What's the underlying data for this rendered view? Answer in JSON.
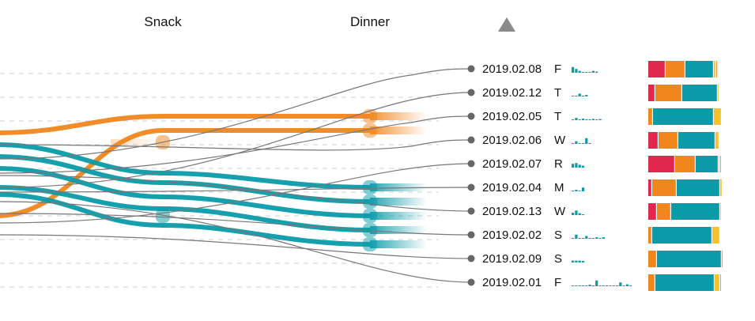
{
  "header": {
    "columns": [
      "Snack",
      "Dinner"
    ],
    "sort_icon": "triangle-up-icon"
  },
  "chart_data": {
    "type": "parallel-flow",
    "colors": {
      "teal": "#0a9aa8",
      "orange": "#f0861c",
      "red": "#e0274e",
      "yellow": "#f6c22c",
      "connector": "#777777",
      "grid": "#d0d0d0"
    },
    "rows": [
      {
        "date": "2019.02.08",
        "day": "F",
        "mini": [
          3,
          2,
          1,
          0.4,
          0.4,
          0.4,
          1,
          0.6
        ],
        "segments": [
          {
            "c": "red",
            "v": 22
          },
          {
            "c": "orange",
            "v": 25
          },
          {
            "c": "teal",
            "v": 36
          },
          {
            "c": "yellow",
            "v": 3
          },
          {
            "c": "orange",
            "v": 2
          }
        ]
      },
      {
        "date": "2019.02.12",
        "day": "T",
        "mini": [
          0.4,
          0.4,
          1.5,
          0.4,
          0.8
        ],
        "segments": [
          {
            "c": "red",
            "v": 9
          },
          {
            "c": "orange",
            "v": 34
          },
          {
            "c": "teal",
            "v": 45
          },
          {
            "c": "yellow",
            "v": 2
          }
        ]
      },
      {
        "date": "2019.02.05",
        "day": "T",
        "mini": [
          0.4,
          1.2,
          0.4,
          0.8,
          0.4,
          0.4,
          0.7,
          0.4,
          0.6
        ],
        "segments": [
          {
            "c": "orange",
            "v": 6
          },
          {
            "c": "teal",
            "v": 77
          },
          {
            "c": "yellow",
            "v": 10
          }
        ]
      },
      {
        "date": "2019.02.06",
        "day": "W",
        "mini": [
          0.4,
          1.4,
          0.4,
          0.4,
          3,
          0.4
        ],
        "segments": [
          {
            "c": "red",
            "v": 13
          },
          {
            "c": "orange",
            "v": 25
          },
          {
            "c": "teal",
            "v": 47
          },
          {
            "c": "yellow",
            "v": 5
          }
        ]
      },
      {
        "date": "2019.02.07",
        "day": "R",
        "mini": [
          2,
          2.4,
          1.5,
          1
        ],
        "segments": [
          {
            "c": "red",
            "v": 34
          },
          {
            "c": "orange",
            "v": 26
          },
          {
            "c": "teal",
            "v": 29
          },
          {
            "c": "yellow",
            "v": 2
          },
          {
            "c": "orange",
            "v": 2
          }
        ]
      },
      {
        "date": "2019.02.04",
        "day": "M",
        "mini": [
          0.4,
          0.8,
          0.4,
          2
        ],
        "segments": [
          {
            "c": "red",
            "v": 5
          },
          {
            "c": "orange",
            "v": 31
          },
          {
            "c": "teal",
            "v": 55
          },
          {
            "c": "yellow",
            "v": 3
          }
        ]
      },
      {
        "date": "2019.02.13",
        "day": "W",
        "mini": [
          1.2,
          2.4,
          1,
          0.4
        ],
        "segments": [
          {
            "c": "red",
            "v": 11
          },
          {
            "c": "orange",
            "v": 18
          },
          {
            "c": "teal",
            "v": 62
          },
          {
            "c": "yellow",
            "v": 2
          }
        ]
      },
      {
        "date": "2019.02.02",
        "day": "S",
        "mini": [
          0.4,
          2.2,
          0.4,
          0.4,
          1.5,
          0.4,
          0.4,
          0.8,
          0.4,
          0.8
        ],
        "segments": [
          {
            "c": "orange",
            "v": 5
          },
          {
            "c": "teal",
            "v": 76
          },
          {
            "c": "yellow",
            "v": 10
          }
        ]
      },
      {
        "date": "2019.02.09",
        "day": "S",
        "mini": [
          1,
          1,
          1,
          0.8
        ],
        "segments": [
          {
            "c": "orange",
            "v": 11
          },
          {
            "c": "teal",
            "v": 82
          },
          {
            "c": "orange",
            "v": 2
          }
        ]
      },
      {
        "date": "2019.02.01",
        "day": "F",
        "mini": [
          0.4,
          0.4,
          0.4,
          0.4,
          0.4,
          0.8,
          0.4,
          3,
          0.4,
          0.4,
          0.4,
          0.4,
          0.4,
          0.4,
          2,
          0.4,
          1,
          0.4
        ],
        "segments": [
          {
            "c": "orange",
            "v": 9
          },
          {
            "c": "teal",
            "v": 75
          },
          {
            "c": "yellow",
            "v": 7
          },
          {
            "c": "orange",
            "v": 2
          }
        ]
      }
    ],
    "flows": [
      {
        "color": "orange",
        "start_row": 2.7,
        "mid_row": 2.0,
        "dinner_row": 2.0
      },
      {
        "color": "orange",
        "start_row": 6.2,
        "mid_row": 2.6,
        "dinner_row": 2.6
      },
      {
        "color": "teal",
        "start_row": 3.2,
        "mid_row": 4.4,
        "dinner_row": 5.0
      },
      {
        "color": "teal",
        "start_row": 3.7,
        "mid_row": 4.8,
        "dinner_row": 5.6
      },
      {
        "color": "teal",
        "start_row": 4.2,
        "mid_row": 5.4,
        "dinner_row": 6.2
      },
      {
        "color": "teal",
        "start_row": 5.0,
        "mid_row": 5.9,
        "dinner_row": 6.8
      },
      {
        "color": "teal",
        "start_row": 5.3,
        "mid_row": 6.6,
        "dinner_row": 7.4
      }
    ],
    "connectors": [
      {
        "from_row": 3.8,
        "to_row": 0
      },
      {
        "from_row": 5.0,
        "to_row": 1
      },
      {
        "from_row": 4.4,
        "to_row": 2
      },
      {
        "from_row": 3.2,
        "to_row": 3
      },
      {
        "from_row": 6.5,
        "to_row": 4
      },
      {
        "from_row": 5.2,
        "to_row": 5
      },
      {
        "from_row": 4.5,
        "to_row": 6
      },
      {
        "from_row": 6.1,
        "to_row": 7
      },
      {
        "from_row": 7.0,
        "to_row": 8
      },
      {
        "from_row": 5.6,
        "to_row": 9
      }
    ]
  }
}
